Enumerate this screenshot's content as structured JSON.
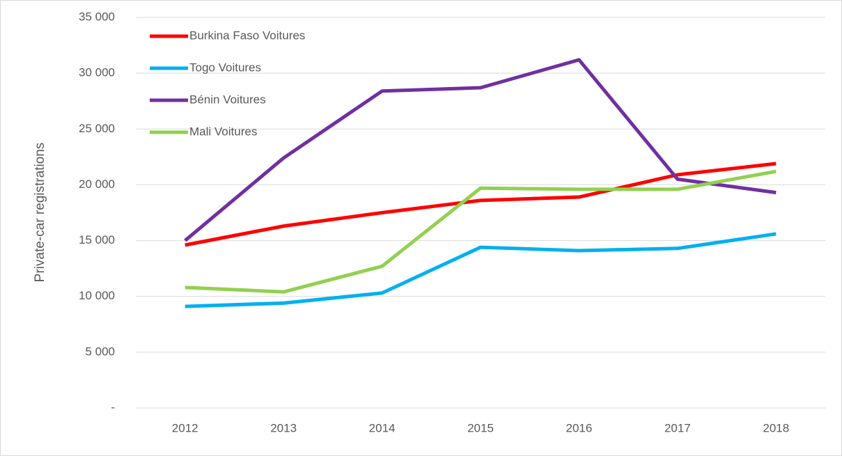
{
  "chart_data": {
    "type": "line",
    "y_label": "Private-car registrations",
    "categories": [
      "2012",
      "2013",
      "2014",
      "2015",
      "2016",
      "2017",
      "2018"
    ],
    "series": [
      {
        "name": "Burkina Faso Voitures",
        "color": "#ff0000",
        "values": [
          14600,
          16300,
          17500,
          18600,
          18900,
          20900,
          21900
        ]
      },
      {
        "name": "Togo Voitures",
        "color": "#00b0f0",
        "values": [
          9100,
          9400,
          10300,
          14400,
          14100,
          14300,
          15600
        ]
      },
      {
        "name": "Bénin Voitures",
        "color": "#7030a0",
        "values": [
          15000,
          22400,
          28400,
          28700,
          31200,
          20500,
          19300
        ]
      },
      {
        "name": "Mali Voitures",
        "color": "#92d050",
        "values": [
          10800,
          10400,
          12700,
          19700,
          19600,
          19600,
          21200
        ]
      }
    ],
    "ylim": [
      0,
      35000
    ],
    "yticks": [
      {
        "value": 0,
        "label": "-"
      },
      {
        "value": 5000,
        "label": "5 000"
      },
      {
        "value": 10000,
        "label": "10 000"
      },
      {
        "value": 15000,
        "label": "15 000"
      },
      {
        "value": 20000,
        "label": "20 000"
      },
      {
        "value": 25000,
        "label": "25 000"
      },
      {
        "value": 30000,
        "label": "30 000"
      },
      {
        "value": 35000,
        "label": "35 000"
      }
    ],
    "grid": true,
    "legend": "upper left"
  }
}
